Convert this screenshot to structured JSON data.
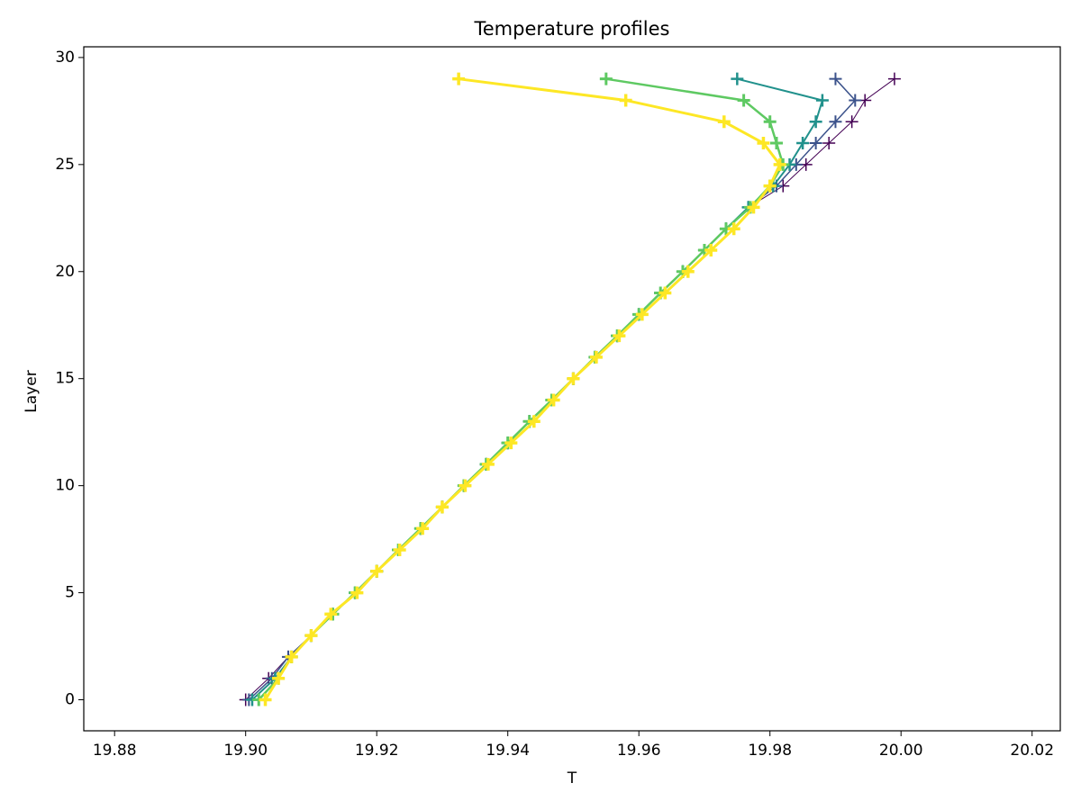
{
  "chart_data": {
    "type": "line",
    "title": "Temperature profiles",
    "x_label": "T",
    "y_label": "Layer",
    "y": [
      0,
      1,
      2,
      3,
      4,
      5,
      6,
      7,
      8,
      9,
      10,
      11,
      12,
      13,
      14,
      15,
      16,
      17,
      18,
      19,
      20,
      21,
      22,
      23,
      24,
      25,
      26,
      27,
      28,
      29
    ],
    "xlim": [
      19.8753,
      20.0243
    ],
    "ylim": [
      -1.45,
      30.5
    ],
    "xticks": [
      19.88,
      {
        "value": 19.9,
        "label": "19.90"
      },
      19.92,
      19.94,
      19.96,
      19.98,
      {
        "value": 20,
        "label": "20.00"
      },
      20.02
    ],
    "yticks": [
      0,
      5,
      10,
      15,
      20,
      25,
      30
    ],
    "marker": "+",
    "series": [
      {
        "color": "#440154",
        "values": [
          19.9,
          19.9035,
          19.9065,
          19.91,
          19.9133,
          19.9167,
          19.92,
          19.9233,
          19.9267,
          19.93,
          19.9333,
          19.9367,
          19.94,
          19.9433,
          19.9467,
          19.95,
          19.9533,
          19.9567,
          19.96,
          19.9633,
          19.9667,
          19.97,
          19.9733,
          19.9767,
          19.982,
          19.9855,
          19.989,
          19.9925,
          19.9945,
          19.999
        ]
      },
      {
        "color": "#3b528b",
        "values": [
          19.9005,
          19.904,
          19.9065,
          19.91,
          19.9133,
          19.9167,
          19.92,
          19.9233,
          19.9267,
          19.93,
          19.9333,
          19.9367,
          19.94,
          19.9433,
          19.9467,
          19.95,
          19.9533,
          19.9567,
          19.96,
          19.9633,
          19.9667,
          19.97,
          19.9733,
          19.9767,
          19.981,
          19.984,
          19.987,
          19.99,
          19.993,
          19.99
        ]
      },
      {
        "color": "#21918c",
        "values": [
          19.901,
          19.9045,
          19.907,
          19.91,
          19.9133,
          19.9167,
          19.92,
          19.9233,
          19.9267,
          19.93,
          19.9333,
          19.9367,
          19.94,
          19.9433,
          19.9467,
          19.95,
          19.9533,
          19.9567,
          19.96,
          19.9633,
          19.9667,
          19.97,
          19.9733,
          19.9767,
          19.9805,
          19.983,
          19.985,
          19.987,
          19.988,
          19.975
        ]
      },
      {
        "color": "#5ec962",
        "values": [
          19.902,
          19.905,
          19.907,
          19.91,
          19.9133,
          19.9167,
          19.92,
          19.9233,
          19.9267,
          19.93,
          19.9333,
          19.9367,
          19.94,
          19.9433,
          19.9467,
          19.95,
          19.9533,
          19.9567,
          19.96,
          19.9633,
          19.9667,
          19.97,
          19.9733,
          19.977,
          19.98,
          19.982,
          19.981,
          19.98,
          19.976,
          19.955
        ]
      },
      {
        "color": "#fde725",
        "values": [
          19.903,
          19.905,
          19.907,
          19.91,
          19.913,
          19.917,
          19.92,
          19.9235,
          19.927,
          19.93,
          19.9335,
          19.937,
          19.9405,
          19.944,
          19.947,
          19.95,
          19.9535,
          19.957,
          19.9605,
          19.964,
          19.9675,
          19.971,
          19.9745,
          19.9775,
          19.98,
          19.9815,
          19.979,
          19.973,
          19.958,
          19.9325
        ]
      }
    ]
  }
}
